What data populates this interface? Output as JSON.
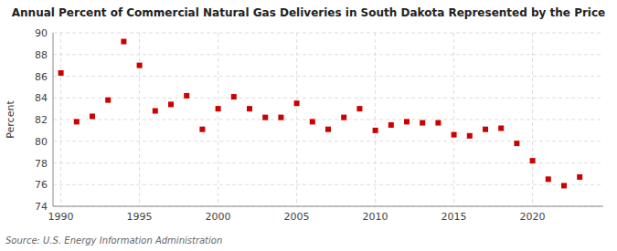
{
  "chart_data": {
    "type": "scatter",
    "title": "Annual Percent of Commercial Natural Gas Deliveries in South Dakota Represented by the Price",
    "y_label": "Percent",
    "annotations": [
      "Source: U.S. Energy Information Administration"
    ],
    "x": [
      1990,
      1991,
      1992,
      1993,
      1994,
      1995,
      1996,
      1997,
      1998,
      1999,
      2000,
      2001,
      2002,
      2003,
      2004,
      2005,
      2006,
      2007,
      2008,
      2009,
      2010,
      2011,
      2012,
      2013,
      2014,
      2015,
      2016,
      2017,
      2018,
      2019,
      2020,
      2021,
      2022,
      2023
    ],
    "values": [
      86.3,
      81.8,
      82.3,
      83.8,
      89.2,
      87.0,
      82.8,
      83.4,
      84.2,
      81.1,
      83.0,
      84.1,
      83.0,
      82.2,
      82.2,
      83.5,
      81.8,
      81.1,
      82.2,
      83.0,
      81.0,
      81.5,
      81.8,
      81.7,
      81.7,
      80.6,
      80.5,
      81.1,
      81.2,
      79.8,
      78.2,
      76.5,
      75.9,
      76.7
    ],
    "color": "#cc0000",
    "marker": "square",
    "grid": true,
    "xlim": [
      1989.5,
      2024.5
    ],
    "xticks": [
      1990,
      1995,
      2000,
      2005,
      2010,
      2015,
      2020
    ],
    "ylim": [
      74,
      90
    ],
    "yticks": [
      74,
      76,
      78,
      80,
      82,
      84,
      86,
      88,
      90
    ]
  }
}
